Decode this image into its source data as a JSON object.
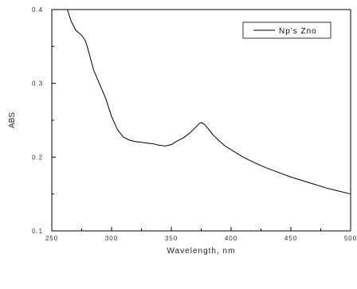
{
  "chart_data": {
    "type": "line",
    "title": "",
    "xlabel": "Wavelength, nm",
    "ylabel": "ABS",
    "xlim": [
      250,
      500
    ],
    "ylim": [
      0.1,
      0.4
    ],
    "x_ticks": [
      "250",
      "300",
      "350",
      "400",
      "450",
      "500"
    ],
    "y_ticks": [
      "0.1",
      "0.2",
      "0.3",
      "0.4"
    ],
    "grid": false,
    "legend": "top-right",
    "series": [
      {
        "name": "Np's Zno",
        "color": "#000000",
        "x": [
          263,
          266,
          270,
          275,
          278,
          280,
          285,
          290,
          295,
          300,
          305,
          310,
          315,
          320,
          325,
          330,
          335,
          340,
          345,
          350,
          355,
          360,
          365,
          370,
          373,
          375,
          378,
          380,
          385,
          390,
          395,
          400,
          410,
          420,
          430,
          440,
          450,
          460,
          470,
          480,
          490,
          500
        ],
        "y": [
          0.4,
          0.385,
          0.372,
          0.365,
          0.358,
          0.348,
          0.318,
          0.299,
          0.28,
          0.255,
          0.237,
          0.227,
          0.223,
          0.221,
          0.22,
          0.219,
          0.218,
          0.216,
          0.215,
          0.217,
          0.222,
          0.226,
          0.232,
          0.24,
          0.245,
          0.247,
          0.244,
          0.24,
          0.23,
          0.222,
          0.215,
          0.21,
          0.2,
          0.192,
          0.185,
          0.179,
          0.173,
          0.168,
          0.163,
          0.158,
          0.154,
          0.15
        ]
      }
    ]
  }
}
